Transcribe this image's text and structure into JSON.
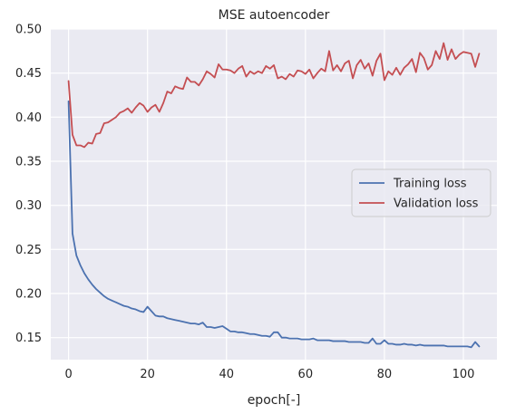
{
  "chart_data": {
    "type": "line",
    "title": "MSE autoencoder",
    "xlabel": "epoch[-]",
    "ylabel": "",
    "xlim": [
      -4.5,
      108.5
    ],
    "ylim": [
      0.125,
      0.5
    ],
    "xticks": [
      0,
      20,
      40,
      60,
      80,
      100
    ],
    "yticks": [
      0.15,
      0.2,
      0.25,
      0.3,
      0.35,
      0.4,
      0.45,
      0.5
    ],
    "yticklabels": [
      "0.15",
      "0.20",
      "0.25",
      "0.30",
      "0.35",
      "0.40",
      "0.45",
      "0.50"
    ],
    "grid": true,
    "legend_position": "center-right",
    "background": "#EAEAF2",
    "series": [
      {
        "name": "Training loss",
        "color": "#4C72B0",
        "values": [
          0.418,
          0.268,
          0.243,
          0.232,
          0.223,
          0.216,
          0.21,
          0.205,
          0.201,
          0.197,
          0.194,
          0.192,
          0.19,
          0.188,
          0.186,
          0.185,
          0.183,
          0.182,
          0.18,
          0.179,
          0.185,
          0.18,
          0.175,
          0.174,
          0.174,
          0.172,
          0.171,
          0.17,
          0.169,
          0.168,
          0.167,
          0.166,
          0.166,
          0.165,
          0.167,
          0.162,
          0.162,
          0.161,
          0.162,
          0.163,
          0.16,
          0.157,
          0.157,
          0.156,
          0.156,
          0.155,
          0.154,
          0.154,
          0.153,
          0.152,
          0.152,
          0.151,
          0.156,
          0.156,
          0.15,
          0.15,
          0.149,
          0.149,
          0.149,
          0.148,
          0.148,
          0.148,
          0.149,
          0.147,
          0.147,
          0.147,
          0.147,
          0.146,
          0.146,
          0.146,
          0.146,
          0.145,
          0.145,
          0.145,
          0.145,
          0.144,
          0.144,
          0.149,
          0.143,
          0.143,
          0.147,
          0.143,
          0.143,
          0.142,
          0.142,
          0.143,
          0.142,
          0.142,
          0.141,
          0.142,
          0.141,
          0.141,
          0.141,
          0.141,
          0.141,
          0.141,
          0.14,
          0.14,
          0.14,
          0.14,
          0.14,
          0.14,
          0.139,
          0.145,
          0.14
        ]
      },
      {
        "name": "Validation loss",
        "color": "#C44E52",
        "values": [
          0.441,
          0.38,
          0.368,
          0.368,
          0.366,
          0.371,
          0.37,
          0.381,
          0.382,
          0.393,
          0.394,
          0.397,
          0.4,
          0.405,
          0.407,
          0.41,
          0.405,
          0.411,
          0.416,
          0.413,
          0.406,
          0.411,
          0.414,
          0.406,
          0.416,
          0.429,
          0.427,
          0.435,
          0.433,
          0.432,
          0.445,
          0.44,
          0.44,
          0.436,
          0.443,
          0.452,
          0.449,
          0.445,
          0.46,
          0.454,
          0.454,
          0.453,
          0.45,
          0.455,
          0.458,
          0.446,
          0.452,
          0.449,
          0.452,
          0.45,
          0.458,
          0.455,
          0.459,
          0.444,
          0.446,
          0.443,
          0.449,
          0.446,
          0.453,
          0.452,
          0.449,
          0.454,
          0.444,
          0.45,
          0.455,
          0.452,
          0.475,
          0.453,
          0.459,
          0.452,
          0.461,
          0.464,
          0.444,
          0.459,
          0.465,
          0.455,
          0.461,
          0.447,
          0.464,
          0.472,
          0.442,
          0.452,
          0.448,
          0.456,
          0.448,
          0.456,
          0.46,
          0.466,
          0.451,
          0.473,
          0.467,
          0.454,
          0.459,
          0.475,
          0.466,
          0.484,
          0.465,
          0.477,
          0.466,
          0.471,
          0.474,
          0.473,
          0.472,
          0.457,
          0.472
        ]
      }
    ]
  }
}
